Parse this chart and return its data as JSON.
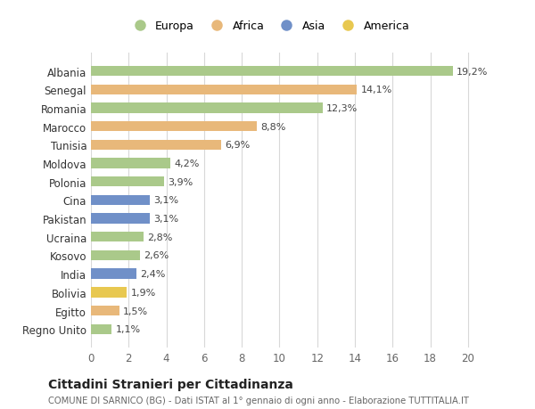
{
  "countries": [
    "Albania",
    "Senegal",
    "Romania",
    "Marocco",
    "Tunisia",
    "Moldova",
    "Polonia",
    "Cina",
    "Pakistan",
    "Ucraina",
    "Kosovo",
    "India",
    "Bolivia",
    "Egitto",
    "Regno Unito"
  ],
  "values": [
    19.2,
    14.1,
    12.3,
    8.8,
    6.9,
    4.2,
    3.9,
    3.1,
    3.1,
    2.8,
    2.6,
    2.4,
    1.9,
    1.5,
    1.1
  ],
  "labels": [
    "19,2%",
    "14,1%",
    "12,3%",
    "8,8%",
    "6,9%",
    "4,2%",
    "3,9%",
    "3,1%",
    "3,1%",
    "2,8%",
    "2,6%",
    "2,4%",
    "1,9%",
    "1,5%",
    "1,1%"
  ],
  "continents": [
    "Europa",
    "Africa",
    "Europa",
    "Africa",
    "Africa",
    "Europa",
    "Europa",
    "Asia",
    "Asia",
    "Europa",
    "Europa",
    "Asia",
    "America",
    "Africa",
    "Europa"
  ],
  "colors": {
    "Europa": "#aac98a",
    "Africa": "#e8b87a",
    "Asia": "#7090c8",
    "America": "#e8c850"
  },
  "background_color": "#ffffff",
  "grid_color": "#d8d8d8",
  "title": "Cittadini Stranieri per Cittadinanza",
  "subtitle": "COMUNE DI SARNICO (BG) - Dati ISTAT al 1° gennaio di ogni anno - Elaborazione TUTTITALIA.IT",
  "xlim": [
    0,
    21
  ],
  "xticks": [
    0,
    2,
    4,
    6,
    8,
    10,
    12,
    14,
    16,
    18,
    20
  ],
  "legend_order": [
    "Europa",
    "Africa",
    "Asia",
    "America"
  ]
}
